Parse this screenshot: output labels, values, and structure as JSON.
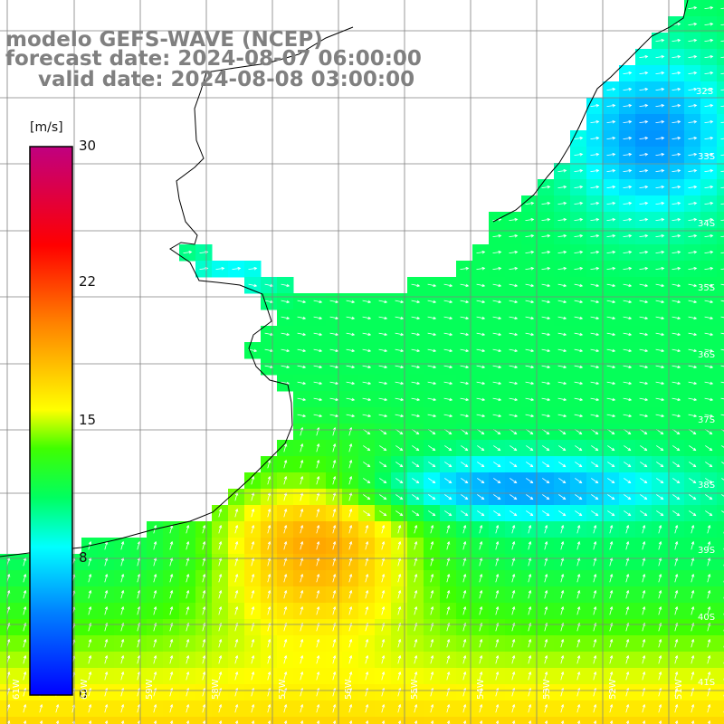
{
  "title": {
    "line1": "modelo GEFS-WAVE (NCEP)",
    "line2": "forecast date: 2024-08-07 06:00:00",
    "line3": "valid date: 2024-08-08 03:00:00"
  },
  "colorbar": {
    "unit": "[m/s]",
    "min": 0,
    "max": 30,
    "ticks": [
      "30",
      "22",
      "15",
      "8",
      "0"
    ],
    "colors": [
      "#0000ff",
      "#00a0ff",
      "#00ffff",
      "#00ff00",
      "#ffff00",
      "#ff8000",
      "#ff0000",
      "#c00080"
    ]
  },
  "latitude_labels": [
    "32S",
    "33S",
    "34S",
    "35S",
    "36S",
    "37S",
    "38S",
    "39S",
    "40S",
    "41S"
  ],
  "longitude_labels": [
    "61W",
    "60W",
    "59W",
    "58W",
    "57W",
    "56W",
    "55W",
    "54W",
    "53W",
    "52W",
    "51W"
  ],
  "map": {
    "field": "wind speed",
    "units": "m/s",
    "arrow_color": "#ffffff",
    "coastline_color": "#000000",
    "grid_color": "#808080"
  }
}
